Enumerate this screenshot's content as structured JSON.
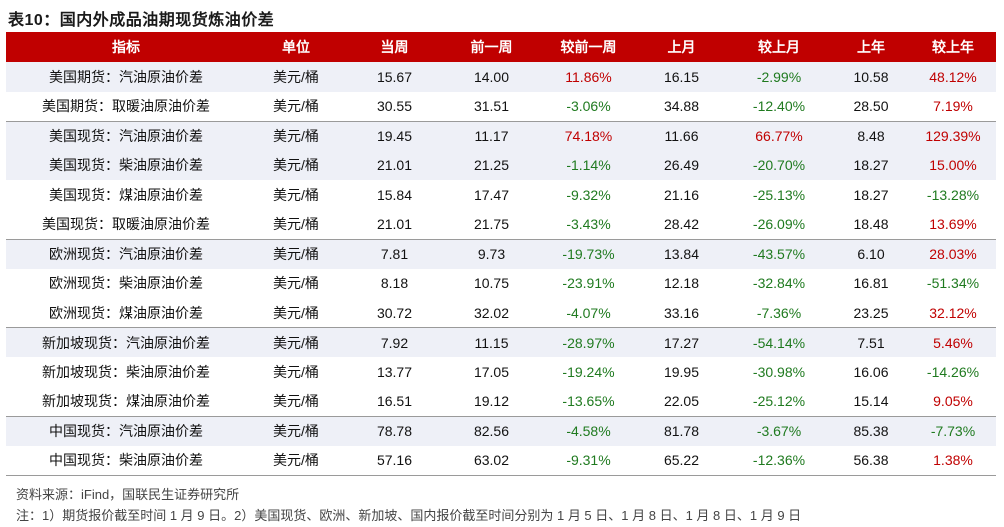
{
  "title": "表10：国内外成品油期现货炼油价差",
  "colors": {
    "header_bg": "#c00000",
    "positive": "#c00000",
    "negative": "#1f7a1f",
    "row_shade": "#eef0f7"
  },
  "columns": [
    "指标",
    "单位",
    "当周",
    "前一周",
    "较前一周",
    "上月",
    "较上月",
    "上年",
    "较上年"
  ],
  "rows": [
    {
      "name": "美国期货：汽油原油价差",
      "unit": "美元/桶",
      "cur": "15.67",
      "prev_w": "14.00",
      "chg_w": "11.86%",
      "prev_m": "16.15",
      "chg_m": "-2.99%",
      "prev_y": "10.58",
      "chg_y": "48.12%"
    },
    {
      "name": "美国期货：取暖油原油价差",
      "unit": "美元/桶",
      "cur": "30.55",
      "prev_w": "31.51",
      "chg_w": "-3.06%",
      "prev_m": "34.88",
      "chg_m": "-12.40%",
      "prev_y": "28.50",
      "chg_y": "7.19%"
    },
    {
      "name": "美国现货：汽油原油价差",
      "unit": "美元/桶",
      "cur": "19.45",
      "prev_w": "11.17",
      "chg_w": "74.18%",
      "prev_m": "11.66",
      "chg_m": "66.77%",
      "prev_y": "8.48",
      "chg_y": "129.39%"
    },
    {
      "name": "美国现货：柴油原油价差",
      "unit": "美元/桶",
      "cur": "21.01",
      "prev_w": "21.25",
      "chg_w": "-1.14%",
      "prev_m": "26.49",
      "chg_m": "-20.70%",
      "prev_y": "18.27",
      "chg_y": "15.00%"
    },
    {
      "name": "美国现货：煤油原油价差",
      "unit": "美元/桶",
      "cur": "15.84",
      "prev_w": "17.47",
      "chg_w": "-9.32%",
      "prev_m": "21.16",
      "chg_m": "-25.13%",
      "prev_y": "18.27",
      "chg_y": "-13.28%"
    },
    {
      "name": "美国现货：取暖油原油价差",
      "unit": "美元/桶",
      "cur": "21.01",
      "prev_w": "21.75",
      "chg_w": "-3.43%",
      "prev_m": "28.42",
      "chg_m": "-26.09%",
      "prev_y": "18.48",
      "chg_y": "13.69%"
    },
    {
      "name": "欧洲现货：汽油原油价差",
      "unit": "美元/桶",
      "cur": "7.81",
      "prev_w": "9.73",
      "chg_w": "-19.73%",
      "prev_m": "13.84",
      "chg_m": "-43.57%",
      "prev_y": "6.10",
      "chg_y": "28.03%"
    },
    {
      "name": "欧洲现货：柴油原油价差",
      "unit": "美元/桶",
      "cur": "8.18",
      "prev_w": "10.75",
      "chg_w": "-23.91%",
      "prev_m": "12.18",
      "chg_m": "-32.84%",
      "prev_y": "16.81",
      "chg_y": "-51.34%"
    },
    {
      "name": "欧洲现货：煤油原油价差",
      "unit": "美元/桶",
      "cur": "30.72",
      "prev_w": "32.02",
      "chg_w": "-4.07%",
      "prev_m": "33.16",
      "chg_m": "-7.36%",
      "prev_y": "23.25",
      "chg_y": "32.12%"
    },
    {
      "name": "新加坡现货：汽油原油价差",
      "unit": "美元/桶",
      "cur": "7.92",
      "prev_w": "11.15",
      "chg_w": "-28.97%",
      "prev_m": "17.27",
      "chg_m": "-54.14%",
      "prev_y": "7.51",
      "chg_y": "5.46%"
    },
    {
      "name": "新加坡现货：柴油原油价差",
      "unit": "美元/桶",
      "cur": "13.77",
      "prev_w": "17.05",
      "chg_w": "-19.24%",
      "prev_m": "19.95",
      "chg_m": "-30.98%",
      "prev_y": "16.06",
      "chg_y": "-14.26%"
    },
    {
      "name": "新加坡现货：煤油原油价差",
      "unit": "美元/桶",
      "cur": "16.51",
      "prev_w": "19.12",
      "chg_w": "-13.65%",
      "prev_m": "22.05",
      "chg_m": "-25.12%",
      "prev_y": "15.14",
      "chg_y": "9.05%"
    },
    {
      "name": "中国现货：汽油原油价差",
      "unit": "美元/桶",
      "cur": "78.78",
      "prev_w": "82.56",
      "chg_w": "-4.58%",
      "prev_m": "81.78",
      "chg_m": "-3.67%",
      "prev_y": "85.38",
      "chg_y": "-7.73%"
    },
    {
      "name": "中国现货：柴油原油价差",
      "unit": "美元/桶",
      "cur": "57.16",
      "prev_w": "63.02",
      "chg_w": "-9.31%",
      "prev_m": "65.22",
      "chg_m": "-12.36%",
      "prev_y": "56.38",
      "chg_y": "1.38%"
    }
  ],
  "source": "资料来源：iFind，国联民生证券研究所",
  "note": "注：1）期货报价截至时间 1 月 9 日。2）美国现货、欧洲、新加坡、国内报价截至时间分别为 1 月 5 日、1 月 8 日、1 月 8 日、1 月 9 日"
}
